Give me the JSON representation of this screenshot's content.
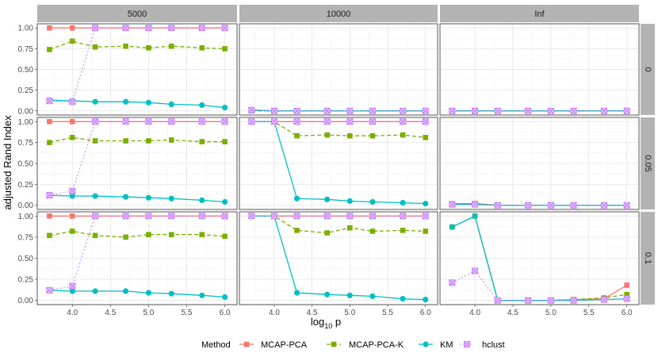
{
  "chart_data": {
    "type": "line",
    "xlabel_base": "log",
    "xlabel_sub": "10",
    "xlabel_var": " p",
    "ylabel": "adjusted Rand Index",
    "x": [
      3.7,
      4.0,
      4.3,
      4.7,
      5.0,
      5.3,
      5.7,
      6.0
    ],
    "xlim": [
      3.54,
      6.16
    ],
    "ylim": [
      -0.05,
      1.05
    ],
    "x_ticks": [
      "4.0",
      "4.5",
      "5.0",
      "5.5",
      "6.0"
    ],
    "y_ticks": [
      "0.00",
      "0.25",
      "0.50",
      "0.75",
      "1.00"
    ],
    "col_strips": [
      "5000",
      "10000",
      "Inf"
    ],
    "row_strips": [
      "0",
      "0.05",
      "0.1"
    ],
    "grid": true,
    "legend": {
      "title": "Method",
      "position": "bottom",
      "entries": [
        "MCAP-PCA",
        "MCAP-PCA-K",
        "KM",
        "hclust"
      ]
    },
    "series_styles": [
      {
        "color": "#F8766D",
        "marker": "square",
        "dash": "solid"
      },
      {
        "color": "#7CAE00",
        "marker": "square",
        "dash": "dashed"
      },
      {
        "color": "#00BFC4",
        "marker": "circle",
        "dash": "solid"
      },
      {
        "color": "#C77CFF",
        "marker": "boxx",
        "dash": "dotted"
      }
    ],
    "panels": [
      {
        "col": 0,
        "row": 0,
        "series": [
          [
            1,
            1,
            1,
            1,
            1,
            1,
            1,
            1
          ],
          [
            0.74,
            0.84,
            0.77,
            0.78,
            0.76,
            0.78,
            0.76,
            0.75
          ],
          [
            0.13,
            0.12,
            0.11,
            0.11,
            0.1,
            0.08,
            0.07,
            0.04
          ],
          [
            0.12,
            0.11,
            1,
            1,
            1,
            1,
            1,
            1
          ]
        ]
      },
      {
        "col": 1,
        "row": 0,
        "series": [
          [
            0.01,
            0,
            0,
            0,
            0,
            0,
            0,
            0
          ],
          [
            0,
            0,
            0,
            0,
            0,
            0,
            0,
            0
          ],
          [
            0.01,
            0,
            0,
            0,
            0,
            0,
            0,
            0
          ],
          [
            0.01,
            0,
            0,
            0,
            0,
            0,
            0,
            0
          ]
        ]
      },
      {
        "col": 2,
        "row": 0,
        "series": [
          [
            0,
            0,
            0,
            0,
            0,
            0,
            0,
            0
          ],
          [
            0,
            0,
            0,
            0,
            0,
            0,
            0,
            0
          ],
          [
            0,
            0,
            0,
            0,
            0,
            0,
            0,
            0
          ],
          [
            0,
            0,
            0,
            0,
            0,
            0,
            0,
            0
          ]
        ]
      },
      {
        "col": 0,
        "row": 1,
        "series": [
          [
            1,
            1,
            1,
            1,
            1,
            1,
            1,
            1
          ],
          [
            0.75,
            0.81,
            0.77,
            0.77,
            0.77,
            0.78,
            0.76,
            0.76
          ],
          [
            0.12,
            0.11,
            0.11,
            0.1,
            0.09,
            0.08,
            0.06,
            0.04
          ],
          [
            0.12,
            0.17,
            1,
            1,
            1,
            1,
            1,
            1
          ]
        ]
      },
      {
        "col": 1,
        "row": 1,
        "series": [
          [
            1,
            1,
            1,
            1,
            1,
            1,
            1,
            1
          ],
          [
            1,
            1,
            0.83,
            0.84,
            0.83,
            0.83,
            0.84,
            0.81
          ],
          [
            1,
            1,
            0.08,
            0.07,
            0.05,
            0.04,
            0.03,
            0.02
          ],
          [
            1,
            1,
            1,
            1,
            1,
            1,
            1,
            1
          ]
        ]
      },
      {
        "col": 2,
        "row": 1,
        "series": [
          [
            0.02,
            0.02,
            0,
            0,
            0,
            0,
            0,
            0
          ],
          [
            0.01,
            0.02,
            0,
            0,
            0,
            0,
            0,
            0
          ],
          [
            0.01,
            0.01,
            0,
            0,
            0,
            0,
            0,
            0
          ],
          [
            0.01,
            0.01,
            0,
            0,
            0,
            0,
            0,
            0
          ]
        ]
      },
      {
        "col": 0,
        "row": 2,
        "series": [
          [
            1,
            1,
            1,
            1,
            1,
            1,
            1,
            1
          ],
          [
            0.77,
            0.82,
            0.77,
            0.75,
            0.78,
            0.78,
            0.78,
            0.76
          ],
          [
            0.12,
            0.11,
            0.11,
            0.11,
            0.09,
            0.08,
            0.06,
            0.04
          ],
          [
            0.12,
            0.17,
            1,
            1,
            1,
            1,
            1,
            1
          ]
        ]
      },
      {
        "col": 1,
        "row": 2,
        "series": [
          [
            1,
            1,
            1,
            1,
            1,
            1,
            1,
            1
          ],
          [
            1,
            1,
            0.83,
            0.8,
            0.86,
            0.82,
            0.83,
            0.82
          ],
          [
            1,
            1,
            0.09,
            0.07,
            0.06,
            0.05,
            0.02,
            0.01
          ],
          [
            1,
            1,
            1,
            1,
            1,
            1,
            1,
            1
          ]
        ]
      },
      {
        "col": 2,
        "row": 2,
        "series": [
          [
            0.87,
            1,
            0,
            0,
            0,
            0.01,
            0.02,
            0.18
          ],
          [
            0.87,
            1,
            0,
            0,
            0,
            0.01,
            0.03,
            0.07
          ],
          [
            0.87,
            1,
            0,
            0,
            0,
            0,
            0.01,
            0.02
          ],
          [
            0.21,
            0.35,
            0,
            0,
            0,
            0,
            0.01,
            0.02
          ]
        ]
      }
    ]
  }
}
